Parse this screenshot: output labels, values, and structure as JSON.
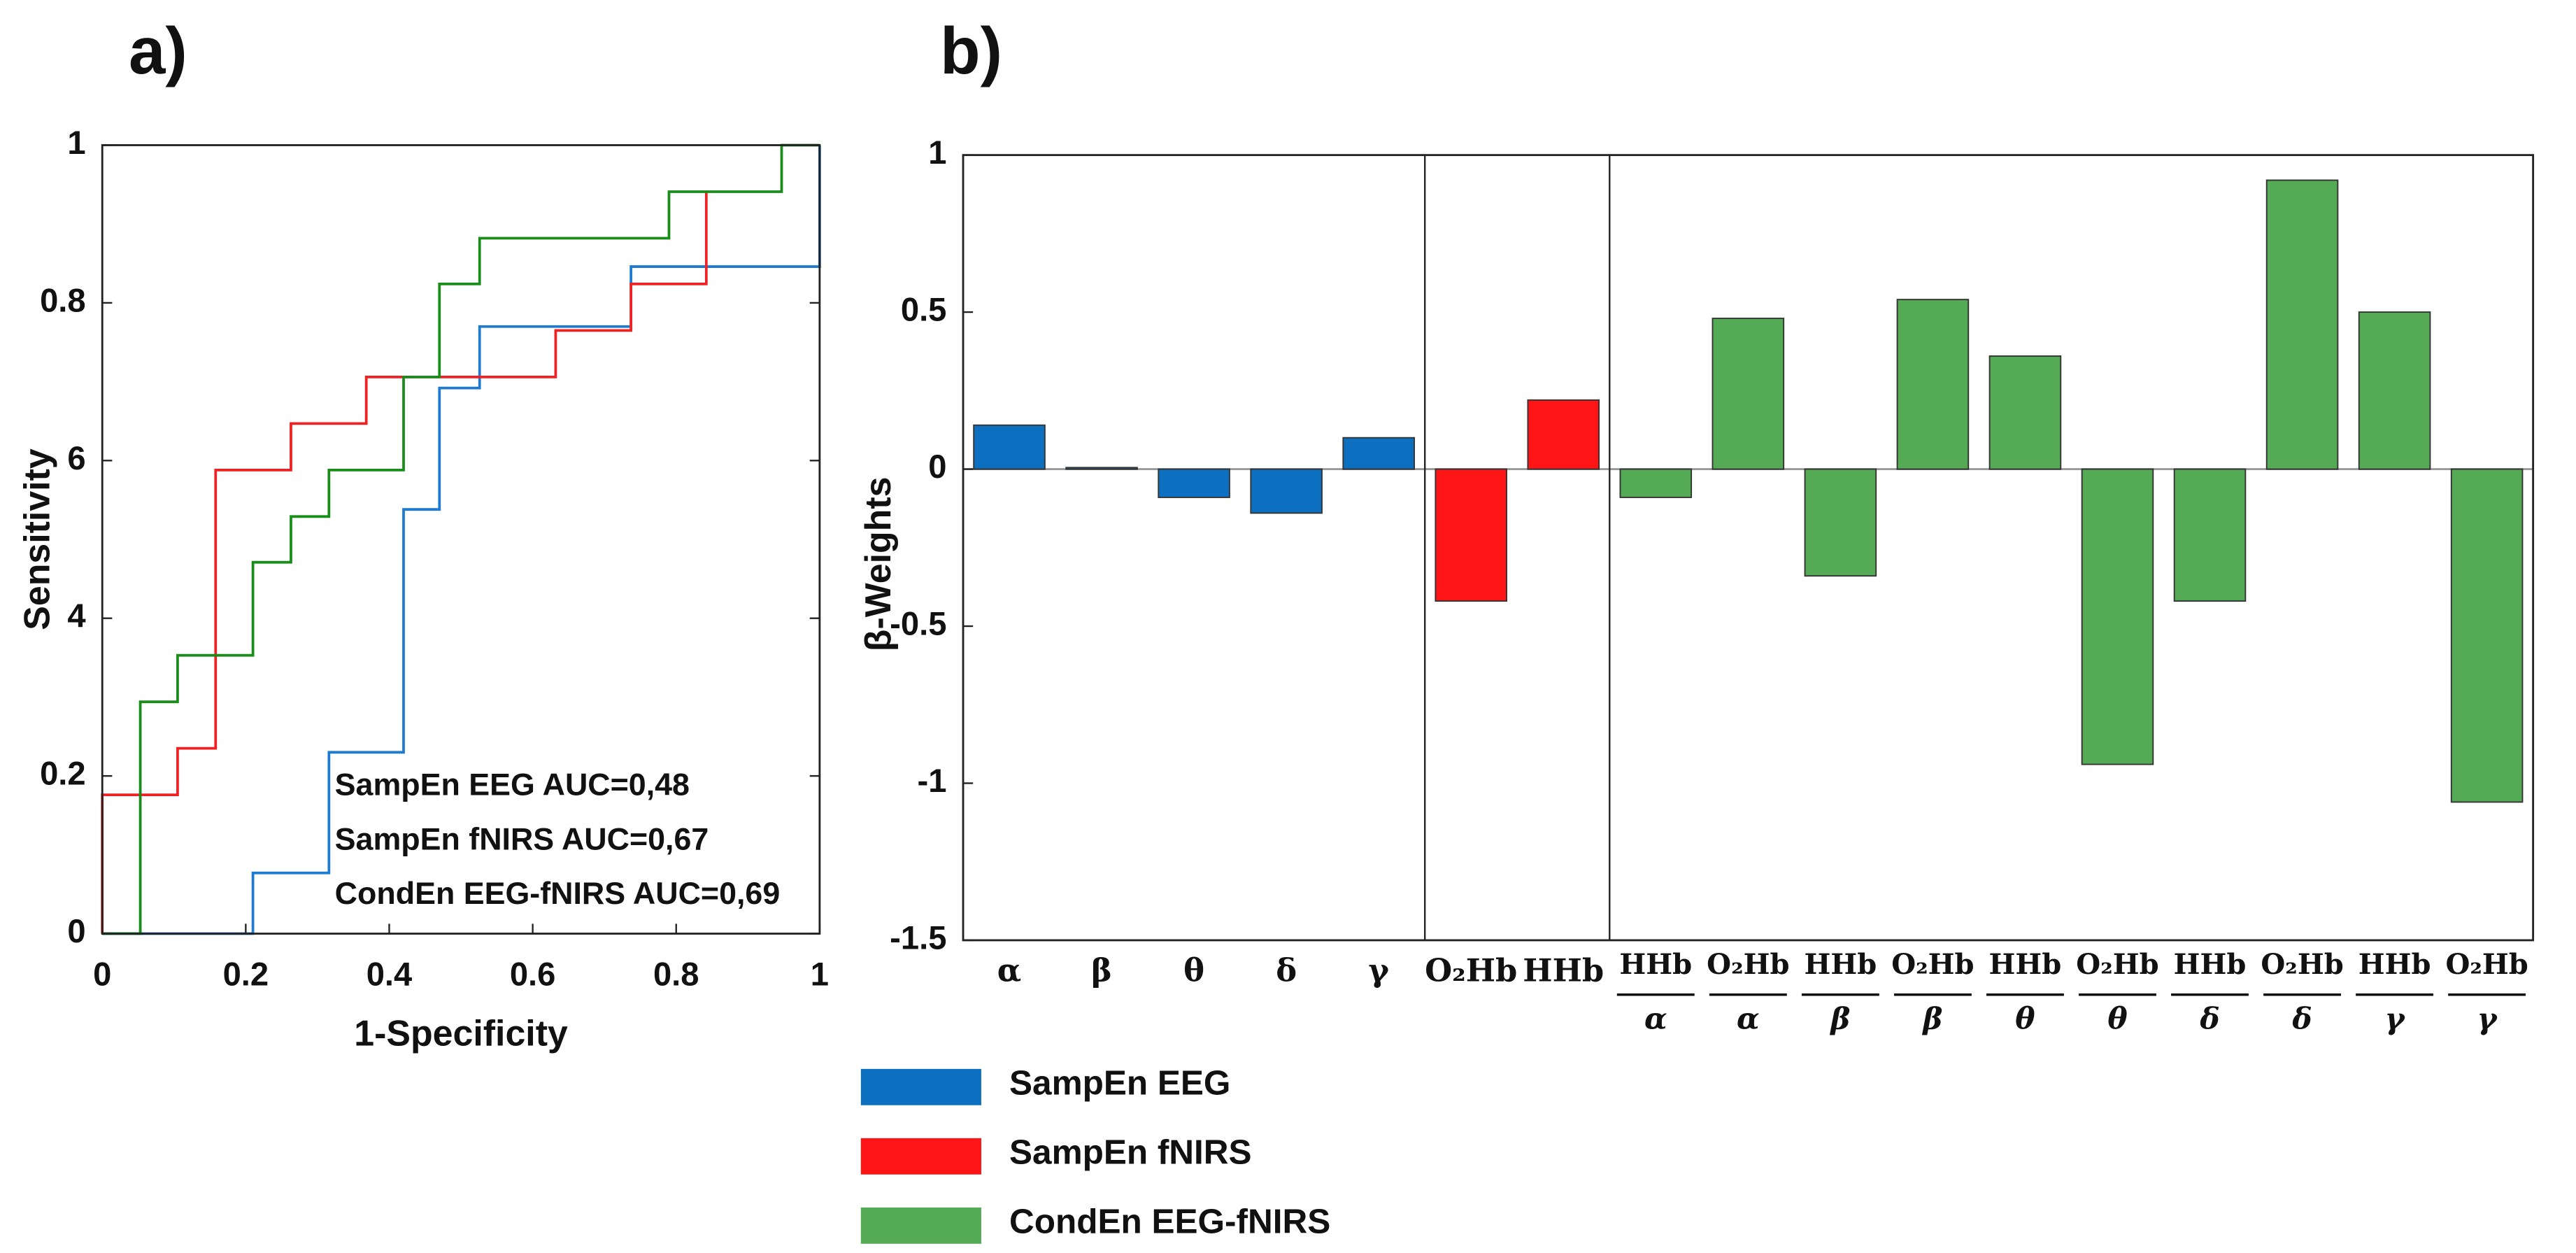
{
  "chart_data": [
    {
      "type": "line",
      "panel_label": "a)",
      "xlabel": "1-Specificity",
      "ylabel": "Sensitivity",
      "xlim": [
        0,
        1
      ],
      "ylim": [
        0,
        1
      ],
      "xticks": [
        0,
        0.2,
        0.4,
        0.6,
        0.8,
        1
      ],
      "yticks": [
        0,
        0.2,
        {
          "value": 0.4,
          "label": "4"
        },
        {
          "value": 0.6,
          "label": "6"
        },
        0.8,
        1
      ],
      "annotations": [
        "SampEn EEG AUC=0,48",
        "SampEn fNIRS AUC=0,67",
        "CondEn EEG-fNIRS AUC=0,69"
      ],
      "series": [
        {
          "name": "SampEn EEG",
          "color": "#1f7bd0",
          "x": [
            0,
            0.21,
            0.21,
            0.316,
            0.316,
            0.42,
            0.42,
            0.47,
            0.47,
            0.526,
            0.526,
            0.737,
            0.737,
            1,
            1
          ],
          "values": [
            0,
            0,
            0.077,
            0.077,
            0.23,
            0.23,
            0.538,
            0.538,
            0.692,
            0.692,
            0.77,
            0.77,
            0.846,
            0.846,
            1
          ]
        },
        {
          "name": "SampEn fNIRS",
          "color": "#ee2222",
          "x": [
            0,
            0,
            0.105,
            0.105,
            0.158,
            0.158,
            0.263,
            0.263,
            0.368,
            0.368,
            0.632,
            0.632,
            0.737,
            0.737,
            0.842,
            0.842
          ],
          "values": [
            0,
            0.176,
            0.176,
            0.235,
            0.235,
            0.588,
            0.588,
            0.647,
            0.647,
            0.706,
            0.706,
            0.765,
            0.765,
            0.824,
            0.824,
            0.941
          ]
        },
        {
          "name": "CondEn EEG-fNIRS",
          "color": "#1a8c1a",
          "x": [
            0,
            0.053,
            0.053,
            0.105,
            0.105,
            0.21,
            0.21,
            0.263,
            0.263,
            0.316,
            0.316,
            0.42,
            0.42,
            0.47,
            0.47,
            0.526,
            0.526,
            0.79,
            0.79,
            0.947,
            0.947,
            1
          ],
          "values": [
            0,
            0,
            0.294,
            0.294,
            0.353,
            0.353,
            0.471,
            0.471,
            0.529,
            0.529,
            0.588,
            0.588,
            0.706,
            0.706,
            0.824,
            0.824,
            0.882,
            0.882,
            0.941,
            0.941,
            1,
            1
          ]
        }
      ]
    },
    {
      "type": "bar",
      "panel_label": "b)",
      "ylabel": "β-Weights",
      "ylim": [
        -1.5,
        1
      ],
      "yticks": [
        -1.5,
        -1,
        -0.5,
        0,
        0.5,
        1
      ],
      "categories": [
        "α",
        "β",
        "θ",
        "δ",
        "γ",
        "O₂Hb",
        "HHb",
        [
          "HHb",
          "α"
        ],
        [
          "O₂Hb",
          "α"
        ],
        [
          "HHb",
          "β"
        ],
        [
          "O₂Hb",
          "β"
        ],
        [
          "HHb",
          "θ"
        ],
        [
          "O₂Hb",
          "θ"
        ],
        [
          "HHb",
          "δ"
        ],
        [
          "O₂Hb",
          "δ"
        ],
        [
          "HHb",
          "γ"
        ],
        [
          "O₂Hb",
          "γ"
        ]
      ],
      "series": [
        {
          "name": "SampEn EEG",
          "color": "#0c6fc0",
          "values": [
            0.14,
            0.005,
            -0.09,
            -0.14,
            0.1,
            null,
            null,
            null,
            null,
            null,
            null,
            null,
            null,
            null,
            null,
            null,
            null
          ]
        },
        {
          "name": "SampEn fNIRS",
          "color": "#ff1515",
          "values": [
            null,
            null,
            null,
            null,
            null,
            -0.42,
            0.22,
            null,
            null,
            null,
            null,
            null,
            null,
            null,
            null,
            null,
            null
          ]
        },
        {
          "name": "CondEn EEG-fNIRS",
          "color": "#55aa55",
          "values": [
            null,
            null,
            null,
            null,
            null,
            null,
            null,
            -0.09,
            0.48,
            -0.34,
            0.54,
            0.36,
            -0.94,
            -0.42,
            0.92,
            0.5,
            -1.06
          ]
        }
      ]
    }
  ]
}
